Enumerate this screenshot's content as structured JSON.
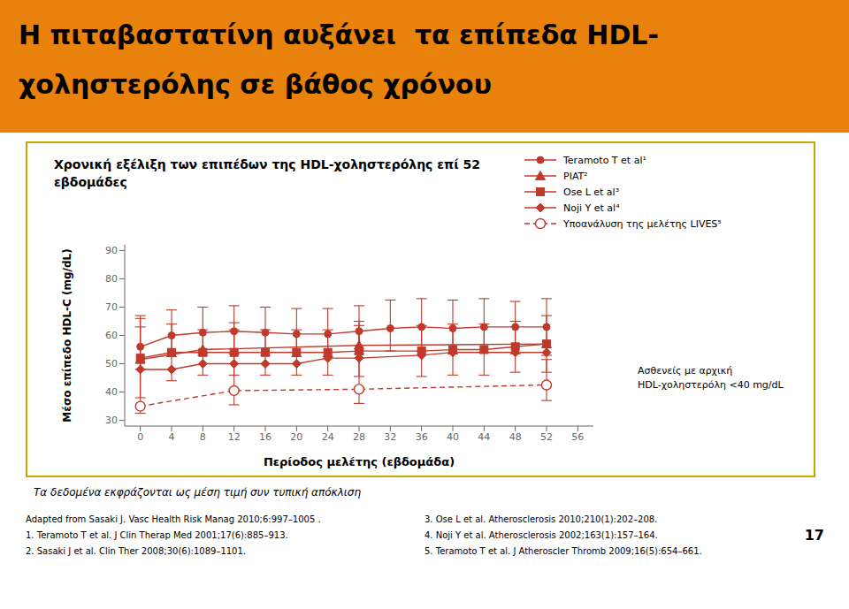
{
  "chart_data": {
    "type": "line",
    "title": "Η πιταβαστατίνη αυξάνει  τα επίπεδα HDL-\nχοληστερόλης σε βάθος χρόνου",
    "subtitle": "Χρονική εξέλιξη των επιπέδων της HDL-χοληστερόλης επί 52\nεβδομάδες",
    "xlabel": "Περίοδος μελέτης (εβδομάδα)",
    "ylabel": "Μέσο επίπεδο HDL-C (mg/dL)",
    "xlim": [
      -2,
      58
    ],
    "ylim": [
      28,
      92
    ],
    "xticks": [
      0,
      4,
      8,
      12,
      16,
      20,
      24,
      28,
      32,
      36,
      40,
      44,
      48,
      52,
      56
    ],
    "yticks": [
      30,
      40,
      50,
      60,
      70,
      80,
      90
    ],
    "grid": false,
    "series": [
      {
        "name": "Teramoto T et al¹",
        "color": "#C0392B",
        "marker": "circle",
        "line_style": "solid",
        "x": [
          0,
          4,
          8,
          12,
          16,
          20,
          24,
          28,
          32,
          36,
          40,
          44,
          48,
          52
        ],
        "values": [
          56,
          60,
          61,
          61.5,
          61,
          60.5,
          60.5,
          61.5,
          62.5,
          63,
          62.5,
          63,
          63,
          63
        ],
        "yerr_low": [
          8,
          7.5,
          8,
          8,
          8,
          8,
          8,
          8,
          8,
          8.5,
          9,
          9,
          9.5,
          10
        ],
        "yerr_high": [
          11,
          9,
          9,
          9,
          9,
          9,
          9,
          9,
          10,
          10,
          10,
          10,
          9,
          10
        ]
      },
      {
        "name": "PIAT²",
        "color": "#C0392B",
        "marker": "triangle",
        "line_style": "solid",
        "x": [
          0,
          8,
          28,
          52
        ],
        "values": [
          51.5,
          55,
          56.5,
          57
        ]
      },
      {
        "name": "Ose L et al³",
        "color": "#C0392B",
        "marker": "square",
        "line_style": "solid",
        "x": [
          0,
          4,
          8,
          12,
          16,
          20,
          24,
          28,
          36,
          40,
          44,
          48,
          52
        ],
        "values": [
          52,
          54,
          54,
          54,
          54,
          54,
          54,
          54.5,
          54.5,
          55,
          55,
          56,
          57
        ],
        "yerr_low": [
          14,
          10,
          8,
          8,
          8,
          8,
          8,
          9,
          9,
          9,
          9,
          9,
          10
        ],
        "yerr_high": [
          14,
          10,
          8,
          8,
          8,
          8,
          8,
          9,
          9,
          9,
          9,
          9,
          10
        ]
      },
      {
        "name": "Noji Y et al⁴",
        "color": "#C0392B",
        "marker": "diamond",
        "line_style": "solid",
        "x": [
          0,
          4,
          8,
          12,
          16,
          20,
          24,
          28,
          36,
          40,
          48,
          52
        ],
        "values": [
          48,
          48,
          50,
          50,
          50,
          50,
          52,
          52,
          53,
          54,
          54,
          54
        ]
      },
      {
        "name": "Υποανάλυση της μελέτης LIVES⁵",
        "color": "#C0392B",
        "marker": "open_circle",
        "line_style": "dashed",
        "x": [
          0,
          12,
          28,
          52
        ],
        "values": [
          35,
          40.5,
          41,
          42.5
        ],
        "yerr_low": [
          2.5,
          5,
          5,
          5.5
        ],
        "yerr_high": [
          28,
          24,
          24,
          9
        ]
      }
    ],
    "annotations": [
      "Ασθενείς με αρχική\nHDL-χοληστερόλη <40 mg/dL",
      "Τα δεδομένα εκφράζονται ως μέση τιμή συν τυπική απόκλιση",
      "Adapted from Sasaki J. Vasc Health Risk Manag 2010;6:997–1005 .",
      "1. Teramoto T et al. J Clin Therap Med 2001;17(6):885–913.",
      "2. Sasaki J et al. Clin Ther 2008;30(6):1089–1101.",
      "3. Ose L et al. Atherosclerosis 2010;210(1):202–208.",
      "4. Noji Y et al. Atherosclerosis 2002;163(1):157–164.",
      "5. Teramoto T et al. J Atheroscler Thromb 2009;16(5):654–661.",
      "17"
    ]
  }
}
